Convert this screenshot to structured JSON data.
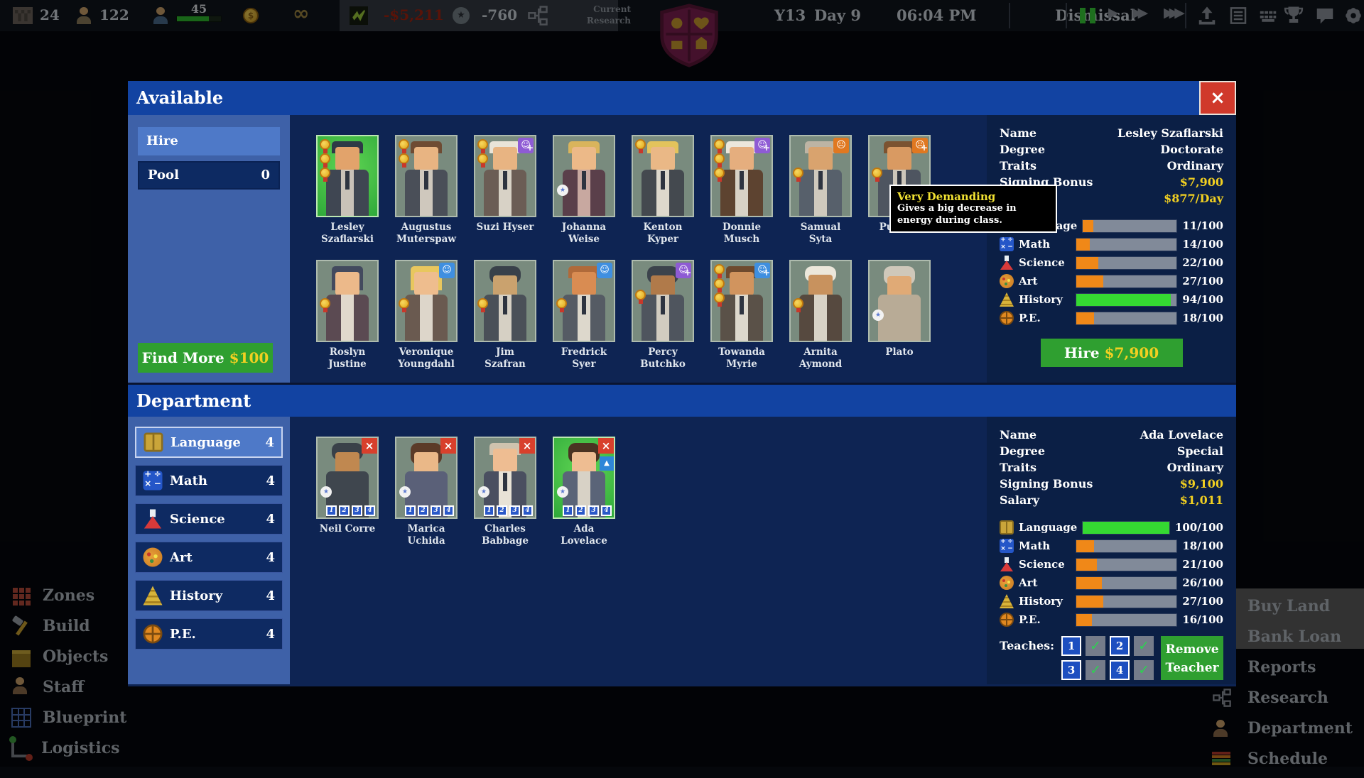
{
  "colors": {
    "header_blue": "#1243a2",
    "button_green": "#2f9f30",
    "money_yellow": "#f2d021",
    "bar_orange": "#f08818",
    "bar_green": "#35d932",
    "selected_card_green": "#3fc546",
    "close_red": "#d0392b"
  },
  "top_bar": {
    "buildings": "24",
    "students": "122",
    "teachers": "45",
    "balance": "-$5,211",
    "rating": "-760",
    "infinity": "∞",
    "current_research_label": "Current Research",
    "date_year": "Y13",
    "date_day": "Day 9",
    "time": "06:04 PM",
    "period": "Dismissal"
  },
  "available": {
    "title": "Available",
    "tabs": {
      "hire": "Hire",
      "pool": "Pool",
      "pool_count": "0"
    },
    "find_more": {
      "label": "Find More",
      "price": "$100"
    },
    "teachers": [
      {
        "name": "Lesley Szaflarski"
      },
      {
        "name": "Augustus Muterspaw"
      },
      {
        "name": "Suzi Hyser"
      },
      {
        "name": "Johanna Weise"
      },
      {
        "name": "Kenton Kyper"
      },
      {
        "name": "Donnie Musch"
      },
      {
        "name": "Samual Syta"
      },
      {
        "name": "Purkiss"
      },
      {
        "name": "Roslyn Justine"
      },
      {
        "name": "Veronique Youngdahl"
      },
      {
        "name": "Jim Szafran"
      },
      {
        "name": "Fredrick Syer"
      },
      {
        "name": "Percy Butchko"
      },
      {
        "name": "Towanda Myrie"
      },
      {
        "name": "Arnita Aymond"
      },
      {
        "name": "Plato"
      }
    ],
    "detail": {
      "rows": [
        {
          "label": "Name",
          "value": "Lesley Szaflarski"
        },
        {
          "label": "Degree",
          "value": "Doctorate"
        },
        {
          "label": "Traits",
          "value": "Ordinary"
        },
        {
          "label": "Signing Bonus",
          "value": "$7,900"
        },
        {
          "label": "Salary",
          "value": "$877/Day"
        }
      ],
      "stats": [
        {
          "subject": "Language",
          "value": 11,
          "display": "11/100"
        },
        {
          "subject": "Math",
          "value": 14,
          "display": "14/100"
        },
        {
          "subject": "Science",
          "value": 22,
          "display": "22/100"
        },
        {
          "subject": "Art",
          "value": 27,
          "display": "27/100"
        },
        {
          "subject": "History",
          "value": 94,
          "display": "94/100"
        },
        {
          "subject": "P.E.",
          "value": 18,
          "display": "18/100"
        }
      ],
      "hire_label": "Hire",
      "hire_price": "$7,900"
    }
  },
  "tooltip": {
    "title": "Very Demanding",
    "body": "Gives a big decrease in energy during class."
  },
  "department": {
    "title": "Department",
    "subjects": [
      {
        "name": "Language",
        "count": "4"
      },
      {
        "name": "Math",
        "count": "4"
      },
      {
        "name": "Science",
        "count": "4"
      },
      {
        "name": "Art",
        "count": "4"
      },
      {
        "name": "History",
        "count": "4"
      },
      {
        "name": "P.E.",
        "count": "4"
      }
    ],
    "grade_badges": [
      "1",
      "2",
      "3",
      "4"
    ],
    "teachers": [
      {
        "name": "Neil Corre"
      },
      {
        "name": "Marica Uchida"
      },
      {
        "name": "Charles Babbage"
      },
      {
        "name": "Ada Lovelace"
      }
    ],
    "detail": {
      "rows": [
        {
          "label": "Name",
          "value": "Ada Lovelace"
        },
        {
          "label": "Degree",
          "value": "Special"
        },
        {
          "label": "Traits",
          "value": "Ordinary"
        },
        {
          "label": "Signing Bonus",
          "value": "$9,100"
        },
        {
          "label": "Salary",
          "value": "$1,011"
        }
      ],
      "stats": [
        {
          "subject": "Language",
          "value": 100,
          "display": "100/100"
        },
        {
          "subject": "Math",
          "value": 18,
          "display": "18/100"
        },
        {
          "subject": "Science",
          "value": 21,
          "display": "21/100"
        },
        {
          "subject": "Art",
          "value": 26,
          "display": "26/100"
        },
        {
          "subject": "History",
          "value": 27,
          "display": "27/100"
        },
        {
          "subject": "P.E.",
          "value": 16,
          "display": "16/100"
        }
      ],
      "teaches_label": "Teaches:",
      "grades": [
        "1",
        "2",
        "3",
        "4"
      ],
      "remove_label": "Remove Teacher"
    }
  },
  "left_menu": [
    "Zones",
    "Build",
    "Objects",
    "Staff",
    "Blueprint",
    "Logistics"
  ],
  "right_menu": [
    "Buy Land",
    "Bank Loan",
    "Reports",
    "Research",
    "Department",
    "Schedule"
  ]
}
